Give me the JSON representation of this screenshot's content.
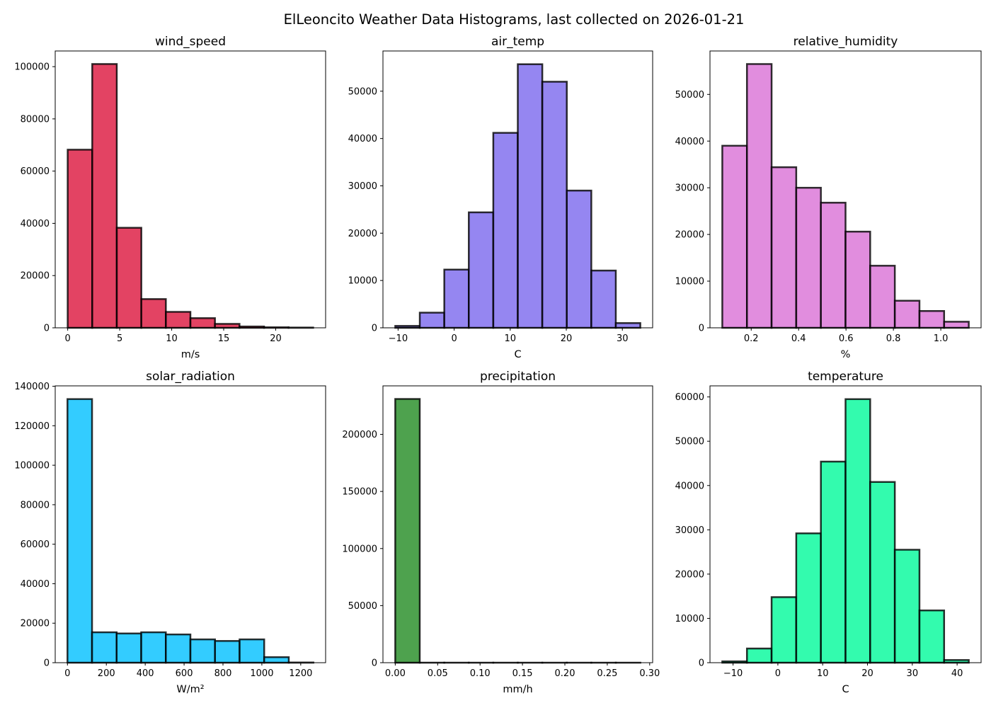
{
  "figure": {
    "title": "ElLeoncito Weather Data Histograms, last collected on 2026-01-21"
  },
  "chart_data": [
    {
      "type": "bar",
      "title": "wind_speed",
      "xlabel": "m/s",
      "ylabel": "",
      "color": "#dc143c",
      "bin_edges": [
        0,
        2.36,
        4.72,
        7.08,
        9.44,
        11.8,
        14.16,
        16.52,
        18.88,
        21.24,
        23.6
      ],
      "values": [
        68200,
        101000,
        38300,
        11000,
        6100,
        3700,
        1500,
        500,
        200,
        100
      ],
      "xlim": [
        -1.2,
        24.8
      ],
      "ylim": [
        0,
        106000
      ],
      "xticks": [
        0,
        5,
        10,
        15,
        20
      ],
      "xtick_labels": [
        "0",
        "5",
        "10",
        "15",
        "20"
      ],
      "yticks": [
        0,
        20000,
        40000,
        60000,
        80000,
        100000
      ],
      "ytick_labels": [
        "0",
        "20000",
        "40000",
        "60000",
        "80000",
        "100000"
      ]
    },
    {
      "type": "bar",
      "title": "air_temp",
      "xlabel": "C",
      "ylabel": "",
      "color": "#7b68ee",
      "bin_edges": [
        -10.5,
        -6.13,
        -1.76,
        2.61,
        6.98,
        11.35,
        15.72,
        20.09,
        24.46,
        28.83,
        33.2
      ],
      "values": [
        400,
        3200,
        12300,
        24400,
        41200,
        55700,
        52000,
        29000,
        12100,
        1000
      ],
      "xlim": [
        -12.7,
        35.4
      ],
      "ylim": [
        0,
        58500
      ],
      "xticks": [
        -10,
        0,
        10,
        20,
        30
      ],
      "xtick_labels": [
        "−10",
        "0",
        "10",
        "20",
        "30"
      ],
      "yticks": [
        0,
        10000,
        20000,
        30000,
        40000,
        50000
      ],
      "ytick_labels": [
        "0",
        "10000",
        "20000",
        "30000",
        "40000",
        "50000"
      ]
    },
    {
      "type": "bar",
      "title": "relative_humidity",
      "xlabel": "%",
      "ylabel": "",
      "color": "#da70d6",
      "bin_edges": [
        0.078,
        0.182,
        0.286,
        0.39,
        0.494,
        0.598,
        0.702,
        0.806,
        0.91,
        1.014,
        1.118
      ],
      "values": [
        39000,
        56500,
        34400,
        30000,
        26800,
        20600,
        13300,
        5800,
        3600,
        1300
      ],
      "xlim": [
        0.026,
        1.17
      ],
      "ylim": [
        0,
        59300
      ],
      "xticks": [
        0.2,
        0.4,
        0.6,
        0.8,
        1.0
      ],
      "xtick_labels": [
        "0.2",
        "0.4",
        "0.6",
        "0.8",
        "1.0"
      ],
      "yticks": [
        0,
        10000,
        20000,
        30000,
        40000,
        50000
      ],
      "ytick_labels": [
        "0",
        "10000",
        "20000",
        "30000",
        "40000",
        "50000"
      ]
    },
    {
      "type": "bar",
      "title": "solar_radiation",
      "xlabel": "W/m²",
      "ylabel": "",
      "color": "#00bfff",
      "bin_edges": [
        0,
        126.5,
        253,
        379.5,
        506,
        632.5,
        759,
        885.5,
        1012,
        1138.5,
        1265
      ],
      "values": [
        133500,
        15400,
        14800,
        15400,
        14300,
        11800,
        11000,
        11800,
        2800,
        100
      ],
      "xlim": [
        -63,
        1328
      ],
      "ylim": [
        0,
        140200
      ],
      "xticks": [
        0,
        200,
        400,
        600,
        800,
        1000,
        1200
      ],
      "xtick_labels": [
        "0",
        "200",
        "400",
        "600",
        "800",
        "1000",
        "1200"
      ],
      "yticks": [
        0,
        20000,
        40000,
        60000,
        80000,
        100000,
        120000,
        140000
      ],
      "ytick_labels": [
        "0",
        "20000",
        "40000",
        "60000",
        "80000",
        "100000",
        "120000",
        "140000"
      ]
    },
    {
      "type": "bar",
      "title": "precipitation",
      "xlabel": "mm/h",
      "ylabel": "",
      "color": "#228b22",
      "bin_edges": [
        0,
        0.0289,
        0.0578,
        0.0867,
        0.1156,
        0.1445,
        0.1734,
        0.2023,
        0.2312,
        0.2601,
        0.289
      ],
      "values": [
        231000,
        20,
        10,
        5,
        5,
        3,
        2,
        2,
        1,
        1
      ],
      "xlim": [
        -0.0145,
        0.3035
      ],
      "ylim": [
        0,
        242500
      ],
      "xticks": [
        0.0,
        0.05,
        0.1,
        0.15,
        0.2,
        0.25,
        0.3
      ],
      "xtick_labels": [
        "0.00",
        "0.05",
        "0.10",
        "0.15",
        "0.20",
        "0.25",
        "0.30"
      ],
      "yticks": [
        0,
        50000,
        100000,
        150000,
        200000
      ],
      "ytick_labels": [
        "0",
        "50000",
        "100000",
        "150000",
        "200000"
      ]
    },
    {
      "type": "bar",
      "title": "temperature",
      "xlabel": "C",
      "ylabel": "",
      "color": "#00fa9a",
      "bin_edges": [
        -12.4,
        -6.9,
        -1.4,
        4.1,
        9.6,
        15.1,
        20.6,
        26.1,
        31.6,
        37.1,
        42.6
      ],
      "values": [
        300,
        3200,
        14800,
        29200,
        45400,
        59500,
        40800,
        25500,
        11800,
        600
      ],
      "xlim": [
        -15.15,
        45.35
      ],
      "ylim": [
        0,
        62500
      ],
      "xticks": [
        -10,
        0,
        10,
        20,
        30,
        40
      ],
      "xtick_labels": [
        "−10",
        "0",
        "10",
        "20",
        "30",
        "40"
      ],
      "yticks": [
        0,
        10000,
        20000,
        30000,
        40000,
        50000,
        60000
      ],
      "ytick_labels": [
        "0",
        "10000",
        "20000",
        "30000",
        "40000",
        "50000",
        "60000"
      ]
    }
  ]
}
